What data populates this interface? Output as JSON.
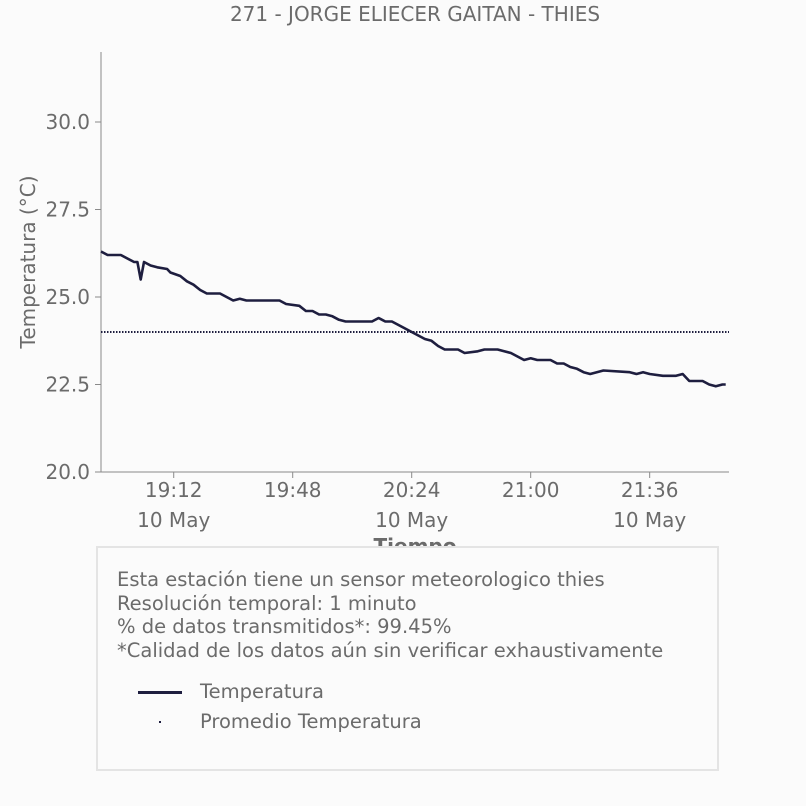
{
  "chart_data": {
    "type": "line",
    "title": "271 - JORGE ELIECER GAITAN - THIES",
    "xlabel": "Tiempo",
    "ylabel": "Temperatura (°C)",
    "ylim": [
      20.0,
      32.0
    ],
    "yticks": [
      {
        "value": 20.0,
        "label": "20.0"
      },
      {
        "value": 22.5,
        "label": "22.5"
      },
      {
        "value": 25.0,
        "label": "25.0"
      },
      {
        "value": 27.5,
        "label": "27.5"
      },
      {
        "value": 30.0,
        "label": "30.0"
      }
    ],
    "xlim": [
      "18:50",
      "22:00"
    ],
    "xticks": [
      {
        "time": "19:12",
        "time_label": "19:12",
        "date_label": "10 May"
      },
      {
        "time": "19:48",
        "time_label": "19:48",
        "date_label": ""
      },
      {
        "time": "20:24",
        "time_label": "20:24",
        "date_label": "10 May"
      },
      {
        "time": "21:00",
        "time_label": "21:00",
        "date_label": ""
      },
      {
        "time": "21:36",
        "time_label": "21:36",
        "date_label": "10 May"
      }
    ],
    "grid": false,
    "series": [
      {
        "name": "Temperatura",
        "color": "#1e1e3f",
        "style": "solid",
        "points": [
          [
            "18:50",
            26.3
          ],
          [
            "18:52",
            26.2
          ],
          [
            "18:56",
            26.2
          ],
          [
            "18:58",
            26.1
          ],
          [
            "19:00",
            26.0
          ],
          [
            "19:01",
            26.0
          ],
          [
            "19:02",
            25.5
          ],
          [
            "19:03",
            26.0
          ],
          [
            "19:05",
            25.9
          ],
          [
            "19:07",
            25.85
          ],
          [
            "19:10",
            25.8
          ],
          [
            "19:11",
            25.7
          ],
          [
            "19:14",
            25.6
          ],
          [
            "19:16",
            25.45
          ],
          [
            "19:18",
            25.35
          ],
          [
            "19:20",
            25.2
          ],
          [
            "19:22",
            25.1
          ],
          [
            "19:26",
            25.1
          ],
          [
            "19:28",
            25.0
          ],
          [
            "19:30",
            24.9
          ],
          [
            "19:32",
            24.95
          ],
          [
            "19:34",
            24.9
          ],
          [
            "19:44",
            24.9
          ],
          [
            "19:46",
            24.8
          ],
          [
            "19:50",
            24.75
          ],
          [
            "19:52",
            24.6
          ],
          [
            "19:54",
            24.6
          ],
          [
            "19:56",
            24.5
          ],
          [
            "19:58",
            24.5
          ],
          [
            "20:00",
            24.45
          ],
          [
            "20:02",
            24.35
          ],
          [
            "20:04",
            24.3
          ],
          [
            "20:12",
            24.3
          ],
          [
            "20:14",
            24.4
          ],
          [
            "20:16",
            24.3
          ],
          [
            "20:18",
            24.3
          ],
          [
            "20:20",
            24.2
          ],
          [
            "20:22",
            24.1
          ],
          [
            "20:24",
            24.0
          ],
          [
            "20:26",
            23.9
          ],
          [
            "20:28",
            23.8
          ],
          [
            "20:30",
            23.75
          ],
          [
            "20:32",
            23.6
          ],
          [
            "20:34",
            23.5
          ],
          [
            "20:38",
            23.5
          ],
          [
            "20:40",
            23.4
          ],
          [
            "20:44",
            23.45
          ],
          [
            "20:46",
            23.5
          ],
          [
            "20:50",
            23.5
          ],
          [
            "20:52",
            23.45
          ],
          [
            "20:54",
            23.4
          ],
          [
            "20:56",
            23.3
          ],
          [
            "20:58",
            23.2
          ],
          [
            "21:00",
            23.25
          ],
          [
            "21:02",
            23.2
          ],
          [
            "21:06",
            23.2
          ],
          [
            "21:08",
            23.1
          ],
          [
            "21:10",
            23.1
          ],
          [
            "21:12",
            23.0
          ],
          [
            "21:14",
            22.95
          ],
          [
            "21:16",
            22.85
          ],
          [
            "21:18",
            22.8
          ],
          [
            "21:20",
            22.85
          ],
          [
            "21:22",
            22.9
          ],
          [
            "21:30",
            22.85
          ],
          [
            "21:32",
            22.8
          ],
          [
            "21:34",
            22.85
          ],
          [
            "21:36",
            22.8
          ],
          [
            "21:40",
            22.75
          ],
          [
            "21:44",
            22.75
          ],
          [
            "21:46",
            22.8
          ],
          [
            "21:48",
            22.6
          ],
          [
            "21:52",
            22.6
          ],
          [
            "21:54",
            22.5
          ],
          [
            "21:56",
            22.45
          ],
          [
            "21:58",
            22.5
          ],
          [
            "21:59",
            22.5
          ]
        ]
      },
      {
        "name": "Promedio Temperatura",
        "color": "#1e1e3f",
        "style": "dotted",
        "points": [
          [
            "18:50",
            24.0
          ],
          [
            "22:00",
            24.0
          ]
        ]
      }
    ]
  },
  "info": {
    "lines": [
      "Esta estación tiene un sensor meteorologico thies",
      "Resolución temporal: 1 minuto",
      "% de datos transmitidos*: 99.45%",
      "*Calidad de los datos aún sin verificar exhaustivamente"
    ],
    "legend": [
      {
        "label": "Temperatura",
        "marker": "line"
      },
      {
        "label": "Promedio Temperatura",
        "marker": "dot"
      }
    ]
  }
}
